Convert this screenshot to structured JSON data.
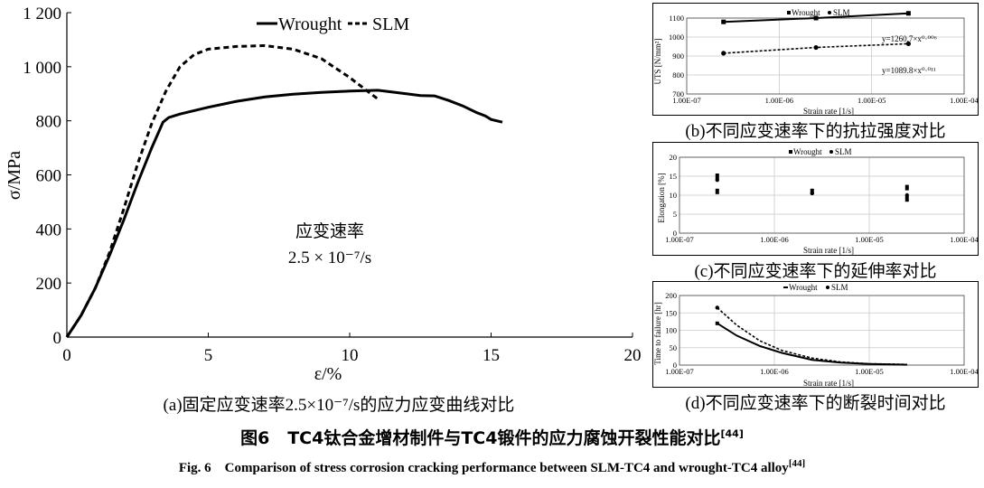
{
  "figure": {
    "title_prefix": "图6",
    "title_text": "TC4钛合金增材制件与TC4锻件的应力腐蚀开裂性能对比",
    "title_ref": "[44]",
    "title_en_text": "Fig. 6    Comparison of stress corrosion cracking performance between SLM-TC4 and wrought-TC4 alloy",
    "title_en_ref": "[44]"
  },
  "chart_data": [
    {
      "id": "a",
      "type": "line",
      "caption": "(a)固定应变速率2.5×10⁻⁷/s的应力应变曲线对比",
      "xlabel": "ε/%",
      "ylabel": "σ/MPa",
      "xlim": [
        0,
        20
      ],
      "ylim": [
        0,
        1200
      ],
      "xticks": [
        "0",
        "5",
        "10",
        "15",
        "20"
      ],
      "yticks": [
        "0",
        "200",
        "400",
        "600",
        "800",
        "1 000",
        "1 200"
      ],
      "annotation": [
        "应变速率",
        "2.5 × 10⁻⁷/s"
      ],
      "legend": [
        "Wrought",
        "SLM"
      ],
      "grid": false,
      "series": [
        {
          "name": "Wrought",
          "style": "solid",
          "x": [
            0,
            0.5,
            1,
            1.5,
            2,
            2.5,
            3,
            3.4,
            3.6,
            4,
            5,
            6,
            7,
            8,
            9,
            10,
            11,
            12,
            12.5,
            13,
            13.5,
            14,
            14.5,
            14.8,
            15,
            15.4
          ],
          "y": [
            0,
            80,
            180,
            300,
            430,
            570,
            700,
            795,
            812,
            825,
            850,
            872,
            888,
            898,
            905,
            910,
            913,
            900,
            893,
            892,
            875,
            855,
            830,
            818,
            805,
            795
          ]
        },
        {
          "name": "SLM",
          "style": "dashed",
          "x": [
            0,
            0.5,
            1,
            1.5,
            2,
            2.5,
            3,
            3.5,
            4,
            4.5,
            5,
            6,
            7,
            8,
            9,
            10,
            10.5,
            11
          ],
          "y": [
            0,
            80,
            180,
            310,
            470,
            640,
            790,
            910,
            1000,
            1045,
            1065,
            1075,
            1078,
            1065,
            1030,
            960,
            920,
            880
          ]
        }
      ]
    },
    {
      "id": "b",
      "type": "scatter",
      "caption": "(b)不同应变速率下的抗拉强度对比",
      "xlabel": "Strain rate [1/s]",
      "ylabel": "UTS [N/mm²]",
      "xscale": "log",
      "xlim": [
        1e-07,
        0.0001
      ],
      "ylim": [
        700,
        1100
      ],
      "xticks": [
        "1.00E-07",
        "1.00E-06",
        "1.00E-05",
        "1.00E-04"
      ],
      "yticks": [
        "700",
        "800",
        "900",
        "1000",
        "1100"
      ],
      "legend": [
        "Wrought",
        "SLM"
      ],
      "grid": true,
      "equations": [
        "y=1260.7×x⁰·⁰⁰⁶",
        "y=1089.8×x⁰·⁰¹¹"
      ],
      "series": [
        {
          "name": "Wrought",
          "style": "solid",
          "x": [
            2.5e-07,
            2.5e-06,
            2.5e-05
          ],
          "y": [
            1080,
            1100,
            1125
          ]
        },
        {
          "name": "SLM",
          "style": "dashed",
          "x": [
            2.5e-07,
            2.5e-06,
            2.5e-05
          ],
          "y": [
            915,
            945,
            965
          ]
        }
      ]
    },
    {
      "id": "c",
      "type": "scatter",
      "caption": "(c)不同应变速率下的延伸率对比",
      "xlabel": "Strain rate [1/s]",
      "ylabel": "Elongation [%]",
      "xscale": "log",
      "xlim": [
        1e-07,
        0.0001
      ],
      "ylim": [
        0,
        20
      ],
      "xticks": [
        "1.00E-07",
        "1.00E-06",
        "1.00E-05",
        "1.00E-04"
      ],
      "yticks": [
        "0",
        "5",
        "10",
        "15",
        "20"
      ],
      "legend": [
        "Wrought",
        "SLM"
      ],
      "grid": true,
      "series": [
        {
          "name": "Wrought",
          "x": [
            2.5e-07,
            2.5e-07,
            2.5e-06,
            2.5e-05,
            2.5e-05
          ],
          "y": [
            15,
            11,
            11,
            12,
            9
          ]
        },
        {
          "name": "SLM",
          "x": [
            2.5e-07,
            2.5e-06,
            2.5e-05
          ],
          "y": [
            14,
            10.5,
            10
          ]
        }
      ]
    },
    {
      "id": "d",
      "type": "line",
      "caption": "(d)不同应变速率下的断裂时间对比",
      "xlabel": "Strain rate [1/s]",
      "ylabel": "Time to failure [hr]",
      "xscale": "log",
      "xlim": [
        1e-07,
        0.0001
      ],
      "ylim": [
        0,
        200
      ],
      "xticks": [
        "1.00E-07",
        "1.00E-06",
        "1.00E-05",
        "1.00E-04"
      ],
      "yticks": [
        "0",
        "50",
        "100",
        "150",
        "200"
      ],
      "legend": [
        "Wrought",
        "SLM"
      ],
      "grid": true,
      "series": [
        {
          "name": "Wrought",
          "style": "solid",
          "x": [
            2.5e-07,
            4e-07,
            7e-07,
            1.2e-06,
            2.5e-06,
            5e-06,
            1e-05,
            2.5e-05
          ],
          "y": [
            120,
            85,
            55,
            35,
            15,
            7,
            3,
            1
          ]
        },
        {
          "name": "SLM",
          "style": "dashed",
          "x": [
            2.5e-07,
            4e-07,
            7e-07,
            1.2e-06,
            2.5e-06,
            5e-06,
            1e-05,
            2.5e-05
          ],
          "y": [
            165,
            115,
            70,
            42,
            20,
            9,
            4,
            2
          ]
        }
      ]
    }
  ]
}
